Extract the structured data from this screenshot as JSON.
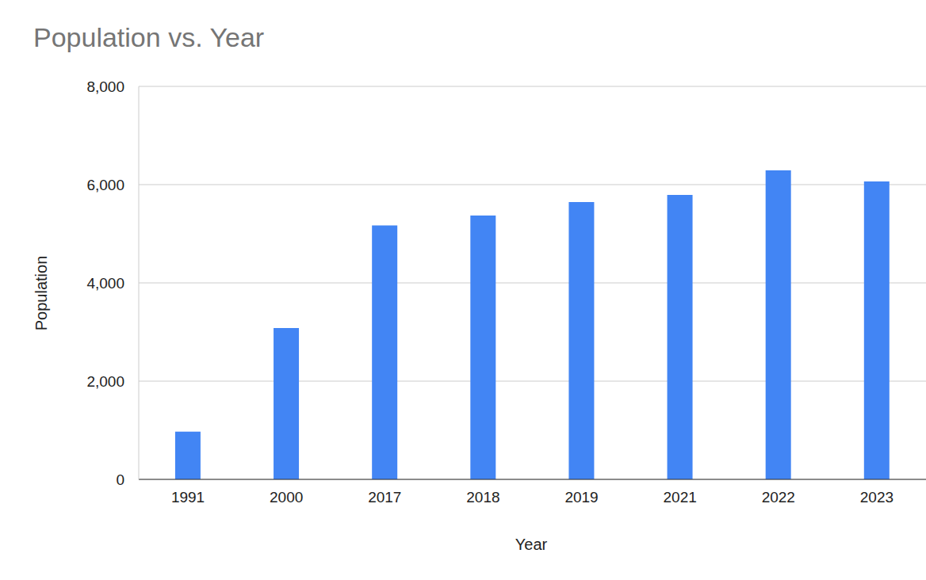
{
  "chart_data": {
    "type": "bar",
    "title": "Population vs. Year",
    "x_label": "Year",
    "y_label": "Population",
    "categories": [
      "1991",
      "2000",
      "2017",
      "2018",
      "2019",
      "2021",
      "2022",
      "2023"
    ],
    "values": [
      970,
      3080,
      5170,
      5370,
      5645,
      5790,
      6290,
      6065
    ],
    "color": "#4285f4",
    "ylim": [
      0,
      8000
    ],
    "yticks": [
      0,
      {
        "value": 2000,
        "label": "2,000"
      },
      {
        "value": 4000,
        "label": "4,000"
      },
      {
        "value": 6000,
        "label": "6,000"
      },
      {
        "value": 8000,
        "label": "8,000"
      }
    ],
    "grid": true
  }
}
